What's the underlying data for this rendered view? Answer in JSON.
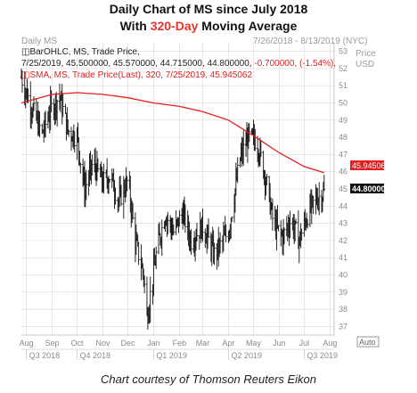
{
  "titles": {
    "line1": "Daily Chart of MS since July 2018",
    "line2_pre": "With ",
    "line2_hl": "320-Day",
    "line2_post": " Moving Average"
  },
  "header": {
    "left": "Daily MS",
    "range": "7/26/2018 - 8/13/2019 (NYC)",
    "price": "Price",
    "usd": "USD"
  },
  "legend": {
    "ohlc_title": "BarOHLC, MS, Trade Price,",
    "ohlc_values": "7/25/2019, 45.500000, 45.570000, 44.715000, 44.800000,",
    "ohlc_change": "-0.700000, (-1.54%),",
    "sma": "SMA, MS, Trade Price(Last), 320, 7/25/2019, 45.945062"
  },
  "labels": {
    "sma_value": "45.945062",
    "last_price": "44.800000",
    "auto": "Auto"
  },
  "caption": "Chart courtesy of Thomson Reuters Eikon",
  "colors": {
    "bars": "#111111",
    "sma": "#e32020",
    "grid": "#d8d8d8",
    "axis_text": "#8a8a8a"
  },
  "chart_data": {
    "type": "line",
    "title": "Daily Chart of MS since July 2018",
    "subtitle": "With 320-Day Moving Average",
    "ylabel": "Price USD",
    "ylim": [
      36.5,
      53.5
    ],
    "y_ticks": [
      37,
      38,
      39,
      40,
      41,
      42,
      43,
      44,
      45,
      46,
      47,
      48,
      49,
      50,
      51,
      52,
      53
    ],
    "x_month_ticks": [
      "Aug",
      "Sep",
      "Oct",
      "Nov",
      "Dec",
      "Jan",
      "Feb",
      "Mar",
      "Apr",
      "May",
      "Jun",
      "Jul",
      "Aug"
    ],
    "x_quarters": [
      "Q3 2018",
      "Q4 2018",
      "Q1 2019",
      "Q2 2019",
      "Q3 2019"
    ],
    "grid": true,
    "series": [
      {
        "name": "BarOHLC, MS, Trade Price",
        "kind": "ohlc-closes",
        "x": [
          "2018-07-26",
          "2018-08-01",
          "2018-08-10",
          "2018-08-20",
          "2018-08-30",
          "2018-09-10",
          "2018-09-20",
          "2018-10-01",
          "2018-10-10",
          "2018-10-20",
          "2018-11-01",
          "2018-11-10",
          "2018-11-20",
          "2018-12-01",
          "2018-12-10",
          "2018-12-20",
          "2018-12-24",
          "2019-01-05",
          "2019-01-15",
          "2019-01-25",
          "2019-02-05",
          "2019-02-15",
          "2019-03-01",
          "2019-03-15",
          "2019-04-01",
          "2019-04-15",
          "2019-04-25",
          "2019-05-05",
          "2019-05-15",
          "2019-05-25",
          "2019-06-05",
          "2019-06-15",
          "2019-06-25",
          "2019-07-05",
          "2019-07-15",
          "2019-07-25"
        ],
        "values": [
          51.5,
          50.6,
          49.4,
          48.2,
          49.6,
          50.4,
          48.4,
          48.0,
          45.0,
          46.5,
          45.4,
          45.8,
          44.3,
          45.5,
          42.0,
          40.0,
          37.5,
          41.5,
          43.5,
          42.5,
          43.6,
          42.0,
          42.8,
          41.2,
          42.5,
          46.8,
          48.0,
          47.8,
          45.8,
          43.0,
          42.2,
          43.2,
          42.0,
          43.5,
          44.4,
          44.8
        ]
      },
      {
        "name": "SMA, MS, Trade Price(Last), 320",
        "kind": "line",
        "x": [
          "2018-07-26",
          "2018-09-01",
          "2018-10-01",
          "2018-11-01",
          "2018-12-01",
          "2019-01-01",
          "2019-02-01",
          "2019-03-01",
          "2019-04-01",
          "2019-05-01",
          "2019-06-01",
          "2019-07-01",
          "2019-07-25"
        ],
        "values": [
          50.0,
          50.5,
          50.6,
          50.5,
          50.3,
          50.0,
          49.8,
          49.5,
          49.0,
          48.1,
          47.1,
          46.3,
          45.945062
        ]
      }
    ]
  }
}
